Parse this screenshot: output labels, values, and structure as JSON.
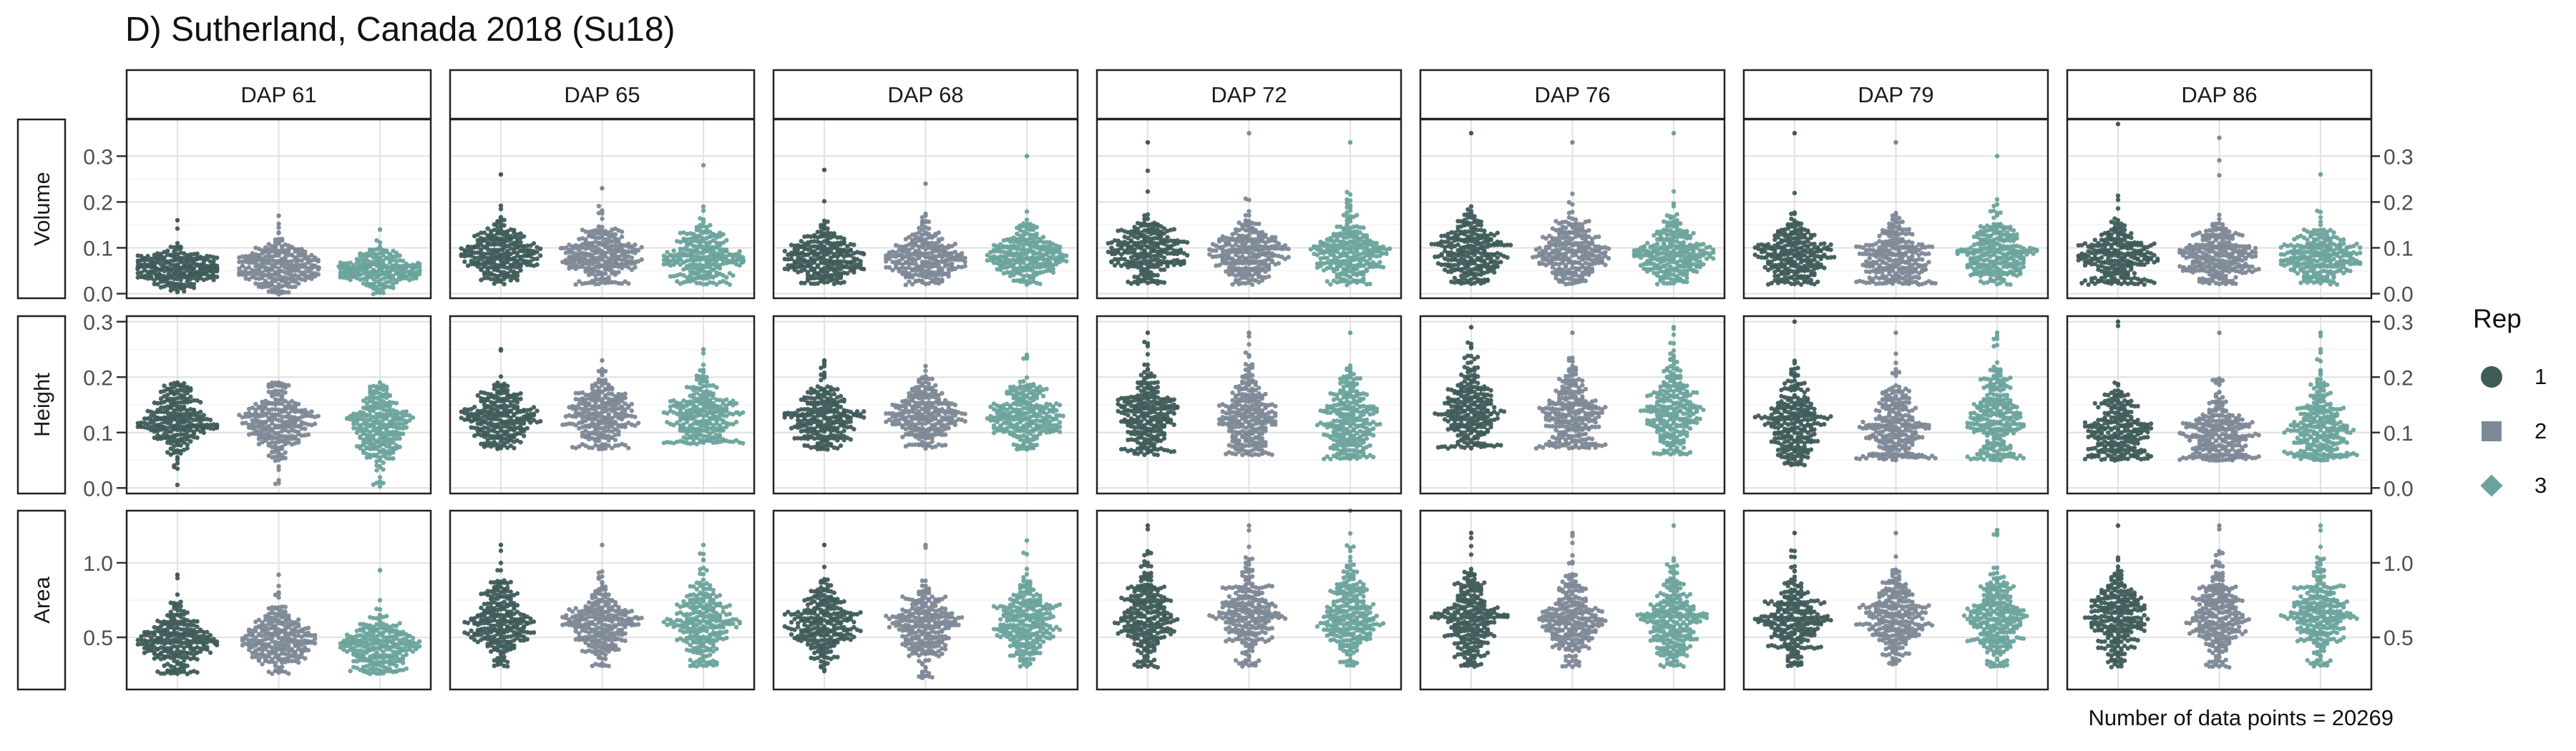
{
  "title": "D) Sutherland, Canada 2018 (Su18)",
  "caption": "Number of data points = 20269",
  "legend": {
    "title": "Rep",
    "items": [
      {
        "label": "1",
        "shape": "circle",
        "color": "#3e5b58"
      },
      {
        "label": "2",
        "shape": "square",
        "color": "#7d8896"
      },
      {
        "label": "3",
        "shape": "diamond",
        "color": "#6aa39c"
      }
    ]
  },
  "chart_data": {
    "type": "scatter",
    "style": "beeswarm",
    "facets": {
      "columns": [
        "DAP 61",
        "DAP 65",
        "DAP 68",
        "DAP 72",
        "DAP 76",
        "DAP 79",
        "DAP 86"
      ],
      "rows": [
        "Volume",
        "Height",
        "Area"
      ]
    },
    "series": [
      {
        "name": "1",
        "color": "#3e5b58",
        "shape": "circle"
      },
      {
        "name": "2",
        "color": "#7d8896",
        "shape": "square"
      },
      {
        "name": "3",
        "color": "#6aa39c",
        "shape": "diamond"
      }
    ],
    "rows": [
      {
        "label": "Volume",
        "ylim": [
          -0.01,
          0.38
        ],
        "ticks": [
          0.0,
          0.1,
          0.2,
          0.3
        ],
        "tick_labels": [
          "0.0",
          "0.1",
          "0.2",
          "0.3"
        ],
        "distributions": [
          [
            [
              0.055,
              0.02,
              0.0,
              0.16
            ],
            [
              0.06,
              0.025,
              0.0,
              0.17
            ],
            [
              0.05,
              0.02,
              0.0,
              0.14
            ]
          ],
          [
            [
              0.085,
              0.03,
              0.02,
              0.26
            ],
            [
              0.085,
              0.03,
              0.02,
              0.23
            ],
            [
              0.08,
              0.03,
              0.02,
              0.28
            ]
          ],
          [
            [
              0.08,
              0.03,
              0.02,
              0.27
            ],
            [
              0.08,
              0.03,
              0.02,
              0.24
            ],
            [
              0.08,
              0.03,
              0.02,
              0.3
            ]
          ],
          [
            [
              0.09,
              0.035,
              0.02,
              0.33
            ],
            [
              0.09,
              0.035,
              0.02,
              0.35
            ],
            [
              0.09,
              0.035,
              0.02,
              0.33
            ]
          ],
          [
            [
              0.09,
              0.035,
              0.02,
              0.35
            ],
            [
              0.09,
              0.035,
              0.02,
              0.33
            ],
            [
              0.09,
              0.035,
              0.02,
              0.35
            ]
          ],
          [
            [
              0.08,
              0.035,
              0.02,
              0.35
            ],
            [
              0.08,
              0.035,
              0.02,
              0.33
            ],
            [
              0.09,
              0.035,
              0.02,
              0.3
            ]
          ],
          [
            [
              0.08,
              0.035,
              0.02,
              0.37
            ],
            [
              0.08,
              0.035,
              0.02,
              0.34
            ],
            [
              0.08,
              0.03,
              0.02,
              0.26
            ]
          ]
        ]
      },
      {
        "label": "Height",
        "ylim": [
          -0.01,
          0.31
        ],
        "ticks": [
          0.0,
          0.1,
          0.2,
          0.3
        ],
        "tick_labels": [
          "0.0",
          "0.1",
          "0.2",
          "0.3"
        ],
        "distributions": [
          [
            [
              0.12,
              0.03,
              0.0,
              0.19
            ],
            [
              0.115,
              0.03,
              0.0,
              0.19
            ],
            [
              0.11,
              0.035,
              0.0,
              0.19
            ]
          ],
          [
            [
              0.13,
              0.03,
              0.07,
              0.25
            ],
            [
              0.13,
              0.03,
              0.07,
              0.23
            ],
            [
              0.13,
              0.03,
              0.08,
              0.25
            ]
          ],
          [
            [
              0.13,
              0.03,
              0.07,
              0.23
            ],
            [
              0.13,
              0.03,
              0.07,
              0.22
            ],
            [
              0.13,
              0.03,
              0.07,
              0.24
            ]
          ],
          [
            [
              0.13,
              0.04,
              0.06,
              0.28
            ],
            [
              0.13,
              0.04,
              0.06,
              0.28
            ],
            [
              0.12,
              0.04,
              0.05,
              0.28
            ]
          ],
          [
            [
              0.14,
              0.04,
              0.07,
              0.29
            ],
            [
              0.14,
              0.04,
              0.07,
              0.28
            ],
            [
              0.14,
              0.045,
              0.06,
              0.29
            ]
          ],
          [
            [
              0.12,
              0.04,
              0.04,
              0.3
            ],
            [
              0.11,
              0.04,
              0.05,
              0.28
            ],
            [
              0.12,
              0.045,
              0.05,
              0.28
            ]
          ],
          [
            [
              0.1,
              0.035,
              0.05,
              0.3
            ],
            [
              0.1,
              0.035,
              0.05,
              0.28
            ],
            [
              0.1,
              0.04,
              0.05,
              0.28
            ]
          ]
        ]
      },
      {
        "label": "Area",
        "ylim": [
          0.15,
          1.35
        ],
        "ticks": [
          0.5,
          1.0
        ],
        "tick_labels": [
          "0.5",
          "1.0"
        ],
        "distributions": [
          [
            [
              0.48,
              0.1,
              0.25,
              0.92
            ],
            [
              0.48,
              0.1,
              0.25,
              0.92
            ],
            [
              0.45,
              0.1,
              0.25,
              0.95
            ]
          ],
          [
            [
              0.6,
              0.13,
              0.3,
              1.12
            ],
            [
              0.6,
              0.13,
              0.3,
              1.12
            ],
            [
              0.6,
              0.14,
              0.3,
              1.12
            ]
          ],
          [
            [
              0.58,
              0.13,
              0.25,
              1.12
            ],
            [
              0.58,
              0.13,
              0.22,
              1.12
            ],
            [
              0.6,
              0.14,
              0.3,
              1.15
            ]
          ],
          [
            [
              0.65,
              0.15,
              0.3,
              1.25
            ],
            [
              0.65,
              0.15,
              0.3,
              1.25
            ],
            [
              0.65,
              0.15,
              0.3,
              1.35
            ]
          ],
          [
            [
              0.62,
              0.14,
              0.3,
              1.2
            ],
            [
              0.62,
              0.14,
              0.3,
              1.2
            ],
            [
              0.62,
              0.15,
              0.3,
              1.25
            ]
          ],
          [
            [
              0.62,
              0.14,
              0.3,
              1.2
            ],
            [
              0.62,
              0.14,
              0.3,
              1.2
            ],
            [
              0.62,
              0.15,
              0.3,
              1.22
            ]
          ],
          [
            [
              0.65,
              0.15,
              0.3,
              1.25
            ],
            [
              0.65,
              0.15,
              0.3,
              1.25
            ],
            [
              0.65,
              0.15,
              0.3,
              1.25
            ]
          ]
        ]
      }
    ],
    "grid": true,
    "legend_position": "right"
  }
}
